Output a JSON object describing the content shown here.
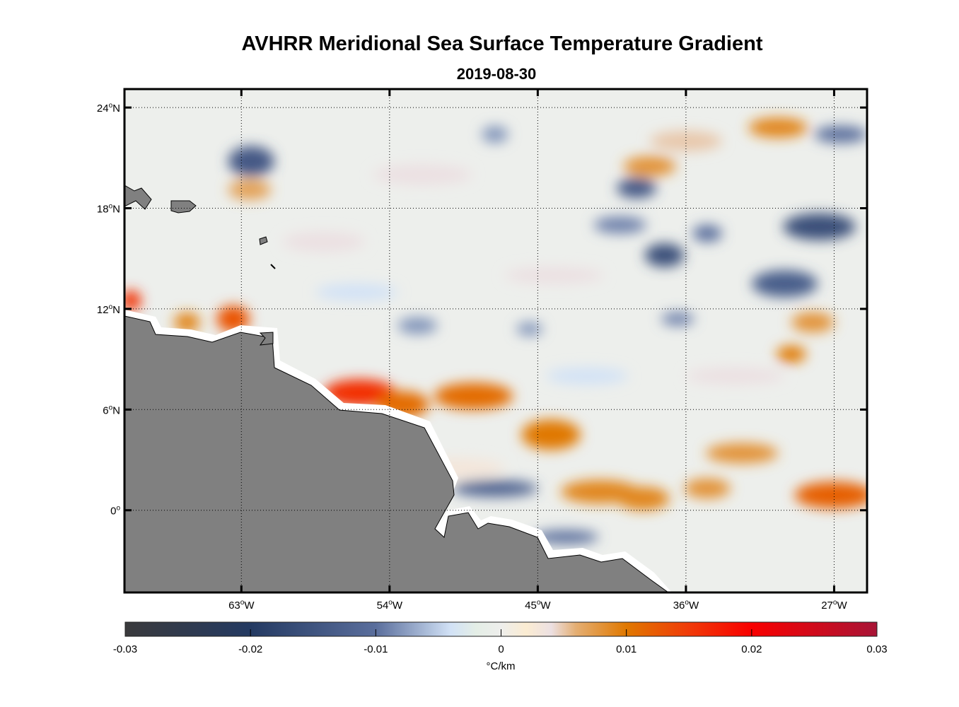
{
  "title": "AVHRR Meridional Sea Surface Temperature Gradient",
  "subtitle": "2019-08-30",
  "chart_data": {
    "type": "heatmap",
    "title": "AVHRR Meridional Sea Surface Temperature Gradient",
    "subtitle": "2019-08-30",
    "lon_range": [
      -70.1,
      -25.0
    ],
    "lat_range": [
      -4.9,
      25.1
    ],
    "grid": true,
    "x_ticks": [
      {
        "value": -63,
        "label": "63",
        "suffix": "W"
      },
      {
        "value": -54,
        "label": "54",
        "suffix": "W"
      },
      {
        "value": -45,
        "label": "45",
        "suffix": "W"
      },
      {
        "value": -36,
        "label": "36",
        "suffix": "W"
      },
      {
        "value": -27,
        "label": "27",
        "suffix": "W"
      }
    ],
    "y_ticks": [
      {
        "value": 24,
        "label": "24",
        "suffix": "N"
      },
      {
        "value": 18,
        "label": "18",
        "suffix": "N"
      },
      {
        "value": 12,
        "label": "12",
        "suffix": "N"
      },
      {
        "value": 6,
        "label": "6",
        "suffix": "N"
      },
      {
        "value": 0,
        "label": "0",
        "suffix": ""
      }
    ],
    "colorbar": {
      "range": [
        -0.03,
        0.03
      ],
      "ticks": [
        "-0.03",
        "-0.02",
        "-0.01",
        "0",
        "0.01",
        "0.02",
        "0.03"
      ],
      "tick_values": [
        -0.03,
        -0.02,
        -0.01,
        0,
        0.01,
        0.02,
        0.03
      ],
      "label": "°C/km",
      "placement": "bottom",
      "colormap": [
        [
          -0.03,
          "#3a3a3c"
        ],
        [
          -0.02,
          "#243a62"
        ],
        [
          -0.01,
          "#5a6e9c"
        ],
        [
          -0.004,
          "#d2e2f6"
        ],
        [
          -0.002,
          "#e4eee6"
        ],
        [
          0,
          "#eeeeec"
        ],
        [
          0.002,
          "#fbecd2"
        ],
        [
          0.004,
          "#ece0e2"
        ],
        [
          0.006,
          "#e4ae72"
        ],
        [
          0.01,
          "#e07800"
        ],
        [
          0.015,
          "#f03a08"
        ],
        [
          0.02,
          "#f80000"
        ],
        [
          0.03,
          "#a81436"
        ]
      ]
    },
    "background_value": 0,
    "features": [
      {
        "lon": -62.4,
        "lat": 20.8,
        "value": -0.014,
        "size_deg": [
          1.4,
          0.9
        ]
      },
      {
        "lon": -62.5,
        "lat": 19.1,
        "value": 0.007,
        "size_deg": [
          1.3,
          0.6
        ]
      },
      {
        "lon": -55.8,
        "lat": 7.0,
        "value": 0.016,
        "size_deg": [
          2.2,
          0.8
        ]
      },
      {
        "lon": -53.2,
        "lat": 6.3,
        "value": 0.011,
        "size_deg": [
          1.6,
          0.8
        ]
      },
      {
        "lon": -48.9,
        "lat": 6.8,
        "value": 0.011,
        "size_deg": [
          2.4,
          0.8
        ]
      },
      {
        "lon": -44.2,
        "lat": 4.5,
        "value": 0.01,
        "size_deg": [
          1.8,
          0.9
        ]
      },
      {
        "lon": -41.2,
        "lat": 1.1,
        "value": 0.009,
        "size_deg": [
          2.4,
          0.7
        ]
      },
      {
        "lon": -38.6,
        "lat": 0.7,
        "value": 0.009,
        "size_deg": [
          1.6,
          0.7
        ]
      },
      {
        "lon": -34.7,
        "lat": 1.3,
        "value": 0.008,
        "size_deg": [
          1.4,
          0.6
        ]
      },
      {
        "lon": -27.0,
        "lat": 0.9,
        "value": 0.012,
        "size_deg": [
          2.4,
          0.8
        ]
      },
      {
        "lon": -29.6,
        "lat": 9.3,
        "value": 0.01,
        "size_deg": [
          0.9,
          0.5
        ]
      },
      {
        "lon": -28.3,
        "lat": 11.2,
        "value": 0.008,
        "size_deg": [
          1.3,
          0.6
        ]
      },
      {
        "lon": -30.4,
        "lat": 22.8,
        "value": 0.009,
        "size_deg": [
          1.8,
          0.6
        ]
      },
      {
        "lon": -38.2,
        "lat": 20.5,
        "value": 0.008,
        "size_deg": [
          1.6,
          0.6
        ]
      },
      {
        "lon": -63.5,
        "lat": 11.4,
        "value": 0.013,
        "size_deg": [
          1.0,
          0.8
        ]
      },
      {
        "lon": -66.3,
        "lat": 11.2,
        "value": 0.009,
        "size_deg": [
          0.8,
          0.6
        ]
      },
      {
        "lon": -69.7,
        "lat": 12.5,
        "value": 0.016,
        "size_deg": [
          0.6,
          0.6
        ]
      },
      {
        "lon": -32.6,
        "lat": 3.4,
        "value": 0.008,
        "size_deg": [
          2.2,
          0.6
        ]
      },
      {
        "lon": -39.0,
        "lat": 19.2,
        "value": -0.014,
        "size_deg": [
          1.2,
          0.6
        ]
      },
      {
        "lon": -37.3,
        "lat": 15.2,
        "value": -0.016,
        "size_deg": [
          1.2,
          0.7
        ]
      },
      {
        "lon": -27.9,
        "lat": 16.9,
        "value": -0.016,
        "size_deg": [
          2.2,
          0.8
        ]
      },
      {
        "lon": -30.0,
        "lat": 13.5,
        "value": -0.013,
        "size_deg": [
          2.0,
          0.8
        ]
      },
      {
        "lon": -26.6,
        "lat": 22.4,
        "value": -0.01,
        "size_deg": [
          1.6,
          0.5
        ]
      },
      {
        "lon": -47.6,
        "lat": 1.3,
        "value": -0.012,
        "size_deg": [
          2.6,
          0.5
        ]
      },
      {
        "lon": -43.3,
        "lat": -1.6,
        "value": -0.01,
        "size_deg": [
          2.0,
          0.4
        ]
      },
      {
        "lon": -36.5,
        "lat": 11.4,
        "value": -0.009,
        "size_deg": [
          1.0,
          0.4
        ]
      },
      {
        "lon": -47.6,
        "lat": 22.4,
        "value": -0.008,
        "size_deg": [
          0.8,
          0.5
        ]
      },
      {
        "lon": -52.3,
        "lat": 11.0,
        "value": -0.008,
        "size_deg": [
          1.2,
          0.5
        ]
      },
      {
        "lon": -34.7,
        "lat": 16.5,
        "value": -0.01,
        "size_deg": [
          0.9,
          0.5
        ]
      },
      {
        "lon": -45.5,
        "lat": 10.8,
        "value": -0.008,
        "size_deg": [
          0.8,
          0.4
        ]
      },
      {
        "lon": -40.0,
        "lat": 17.0,
        "value": -0.009,
        "size_deg": [
          1.6,
          0.5
        ]
      },
      {
        "lon": -36.0,
        "lat": 22.0,
        "value": 0.005,
        "size_deg": [
          2.2,
          0.6
        ]
      },
      {
        "lon": -58.0,
        "lat": 16.0,
        "value": 0.004,
        "size_deg": [
          2.5,
          0.6
        ]
      },
      {
        "lon": -52.0,
        "lat": 20.0,
        "value": 0.004,
        "size_deg": [
          3.0,
          0.6
        ]
      },
      {
        "lon": -44.0,
        "lat": 14.0,
        "value": 0.004,
        "size_deg": [
          3.0,
          0.5
        ]
      },
      {
        "lon": -33.0,
        "lat": 8.0,
        "value": 0.004,
        "size_deg": [
          3.0,
          0.5
        ]
      },
      {
        "lon": -50.0,
        "lat": 2.5,
        "value": 0.003,
        "size_deg": [
          3.0,
          0.6
        ]
      },
      {
        "lon": -56.0,
        "lat": 13.0,
        "value": -0.004,
        "size_deg": [
          2.5,
          0.5
        ]
      },
      {
        "lon": -42.0,
        "lat": 8.0,
        "value": -0.004,
        "size_deg": [
          2.5,
          0.5
        ]
      }
    ]
  }
}
